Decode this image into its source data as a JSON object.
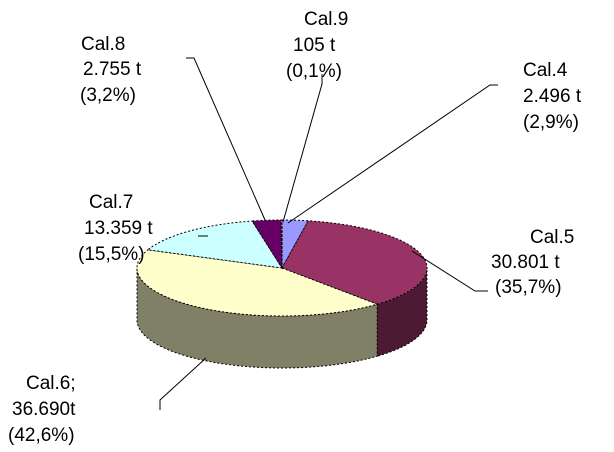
{
  "chart_data": {
    "type": "pie",
    "title": "",
    "style": "3d-exploded-none",
    "slices": [
      {
        "name": "Cal.4",
        "value_text": "2.496 t",
        "value": 2496,
        "percent_text": "(2,9%)",
        "percent": 2.9,
        "color": "#9999ff",
        "side_color": "#5c5c99"
      },
      {
        "name": "Cal.5",
        "value_text": "30.801 t",
        "value": 30801,
        "percent_text": "(35,7%)",
        "percent": 35.7,
        "color": "#993366",
        "side_color": "#4d1a33"
      },
      {
        "name": "Cal.6;",
        "value_text": "36.690t",
        "value": 36690,
        "percent_text": "(42,6%)",
        "percent": 42.6,
        "color": "#ffffcc",
        "side_color": "#808066"
      },
      {
        "name": "Cal.7",
        "value_text": "13.359 t",
        "value": 13359,
        "percent_text": "(15,5%)",
        "percent": 15.5,
        "color": "#ccffff",
        "side_color": "#668080"
      },
      {
        "name": "Cal.8",
        "value_text": "2.755 t",
        "value": 2755,
        "percent_text": "(3,2%)",
        "percent": 3.2,
        "color": "#660066",
        "side_color": "#330033"
      },
      {
        "name": "Cal.9",
        "value_text": "105 t",
        "value": 105,
        "percent_text": "(0,1%)",
        "percent": 0.1,
        "color": "#ff8080",
        "side_color": "#804040"
      }
    ]
  }
}
